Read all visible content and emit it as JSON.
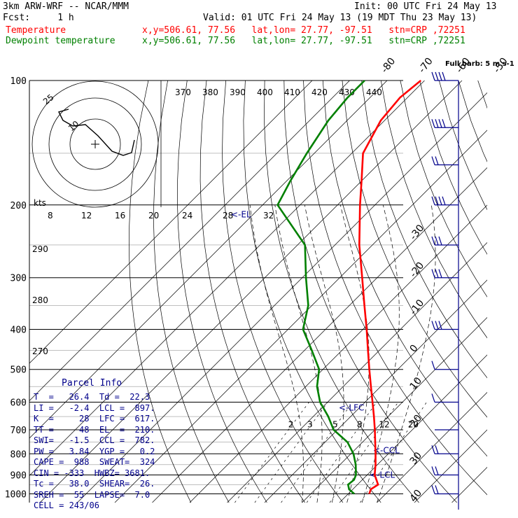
{
  "header": {
    "model": "3km ARW-WRF -- NCAR/MMM",
    "init": "Init: 00 UTC Fri 24 May 13",
    "fcst": "Fcst:     1 h",
    "valid": "Valid: 01 UTC Fri 24 May 13 (19 MDT Thu 23 May 13)",
    "temp_line": "Temperature",
    "dew_line": "Dewpoint temperature",
    "temp_loc": "x,y=506.61, 77.56   lat,lon= 27.77, -97.51   stn=CRP ,72251",
    "dew_loc": "x,y=506.61, 77.56   lat,lon= 27.77, -97.51   stn=CRP ,72251"
  },
  "colors": {
    "temperature": "#ff0000",
    "dewpoint": "#008000",
    "parcel": "#00008b",
    "grid": "#000000"
  },
  "chart_data": {
    "type": "line",
    "subtype": "skew-T log-P sounding",
    "pressure_levels": [
      100,
      200,
      300,
      400,
      500,
      600,
      700,
      800,
      900,
      1000
    ],
    "isotherm_labels": [
      "-80",
      "-70",
      "-60",
      "-50",
      "-40",
      "-30",
      "-20",
      "-10",
      "0",
      "10",
      "20",
      "30",
      "40"
    ],
    "theta_labels": [
      "370",
      "380",
      "390",
      "400",
      "410",
      "420",
      "430",
      "440"
    ],
    "mixing_ratio_labels": [
      "2",
      "3",
      "5",
      "8",
      "12",
      "20"
    ],
    "hodo_speed_labels": [
      "8",
      "12",
      "16",
      "20",
      "24",
      "28",
      "32"
    ],
    "hodo_units": "kts",
    "hodo_ring_labels": [
      "25",
      "10"
    ],
    "theta_e_labels": [
      "290",
      "280",
      "270"
    ],
    "level_markers": [
      "<-EL",
      "<-LFC",
      "<-CCL",
      "<-LCL"
    ],
    "wind_legend": "Full barb: 5 m s-1",
    "series": [
      {
        "name": "Temperature",
        "points": [
          [
            1000,
            25.6
          ],
          [
            975,
            24.8
          ],
          [
            950,
            25.5
          ],
          [
            925,
            23.8
          ],
          [
            900,
            22.0
          ],
          [
            850,
            19.5
          ],
          [
            800,
            16.6
          ],
          [
            750,
            13.4
          ],
          [
            700,
            10.0
          ],
          [
            650,
            6.2
          ],
          [
            600,
            2.0
          ],
          [
            550,
            -2.6
          ],
          [
            500,
            -7.6
          ],
          [
            450,
            -13.0
          ],
          [
            400,
            -19.0
          ],
          [
            350,
            -26.0
          ],
          [
            300,
            -34.0
          ],
          [
            250,
            -43.5
          ],
          [
            200,
            -54.0
          ],
          [
            175,
            -60.0
          ],
          [
            150,
            -67.0
          ],
          [
            125,
            -71.0
          ],
          [
            110,
            -72.0
          ],
          [
            100,
            -71.0
          ]
        ]
      },
      {
        "name": "Dewpoint temperature",
        "points": [
          [
            1000,
            21.6
          ],
          [
            975,
            19.0
          ],
          [
            950,
            17.5
          ],
          [
            925,
            17.8
          ],
          [
            900,
            17.0
          ],
          [
            850,
            14.2
          ],
          [
            800,
            10.7
          ],
          [
            750,
            6.0
          ],
          [
            700,
            -1.0
          ],
          [
            650,
            -6.0
          ],
          [
            600,
            -12.0
          ],
          [
            550,
            -17.0
          ],
          [
            500,
            -21.0
          ],
          [
            450,
            -28.0
          ],
          [
            400,
            -36.0
          ],
          [
            350,
            -41.0
          ],
          [
            300,
            -49.0
          ],
          [
            250,
            -58.0
          ],
          [
            200,
            -76.0
          ],
          [
            175,
            -79.0
          ],
          [
            150,
            -82.0
          ],
          [
            125,
            -85.0
          ],
          [
            110,
            -86.0
          ],
          [
            100,
            -86.0
          ]
        ]
      }
    ],
    "wind_barbs": [
      {
        "p": 100,
        "spd": 20
      },
      {
        "p": 130,
        "spd": 20
      },
      {
        "p": 160,
        "spd": 10
      },
      {
        "p": 200,
        "spd": 20
      },
      {
        "p": 250,
        "spd": 15
      },
      {
        "p": 300,
        "spd": 15
      },
      {
        "p": 400,
        "spd": 15
      },
      {
        "p": 500,
        "spd": 5
      },
      {
        "p": 600,
        "spd": 5
      },
      {
        "p": 700,
        "spd": 3
      },
      {
        "p": 800,
        "spd": 10
      },
      {
        "p": 900,
        "spd": 10
      },
      {
        "p": 1000,
        "spd": 10
      }
    ]
  },
  "parcel_info": {
    "title": "Parcel Info",
    "rows": [
      "T  =   26.4  Td =  22.3",
      "LI =   -2.4  LCL =  897.",
      "K  =     28  LFC =  617.",
      "TT =     48  EL  =  210.",
      "SWI=   -1.5  CCL =  782.",
      "PW =   3.84  YGP =   0.2",
      "CAPE =  988  SWEAT=  324",
      "CIN = -333  HWBZ= 3681.",
      "Tc =   38.0  SHEAR=  26.",
      "SREH =  55  LAPSE=  7.0",
      "CELL = 243/06"
    ]
  }
}
